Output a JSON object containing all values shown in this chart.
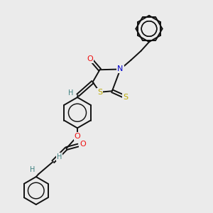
{
  "background_color": "#ebebeb",
  "atom_colors": {
    "C": "#000000",
    "N": "#0000cc",
    "O": "#ee1111",
    "S": "#bbaa00",
    "H": "#3d8080"
  },
  "bond_color": "#111111",
  "bond_width": 1.4,
  "figsize": [
    3.0,
    3.0
  ],
  "dpi": 100,
  "xlim": [
    0,
    10
  ],
  "ylim": [
    0,
    10
  ]
}
